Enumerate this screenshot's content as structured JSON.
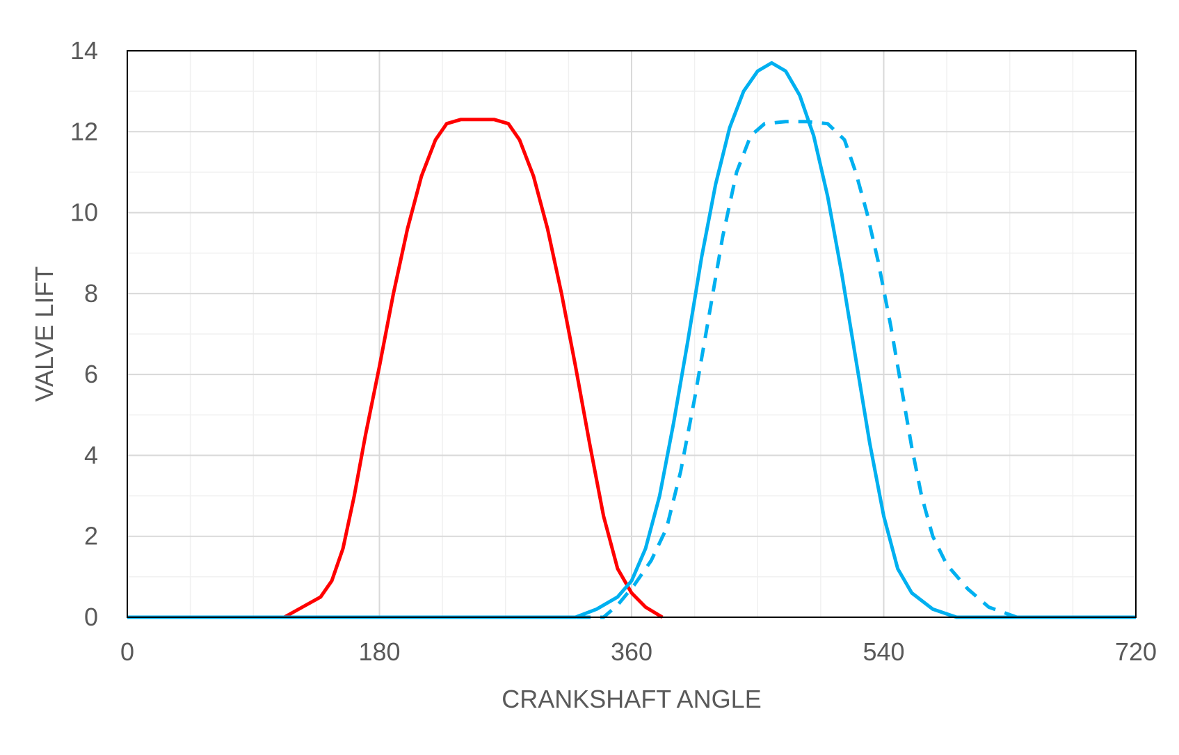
{
  "chart_data": {
    "type": "line",
    "title": "",
    "xlabel": "CRANKSHAFT ANGLE",
    "ylabel": "VALVE LIFT",
    "xlim": [
      0,
      720
    ],
    "ylim": [
      0,
      14
    ],
    "xticks": [
      "0",
      "180",
      "360",
      "540",
      "720"
    ],
    "yticks": [
      "0",
      "2",
      "4",
      "6",
      "8",
      "10",
      "12",
      "14"
    ],
    "x_tick_values": [
      0,
      180,
      360,
      540,
      720
    ],
    "y_tick_values": [
      0,
      2,
      4,
      6,
      8,
      10,
      12,
      14
    ],
    "grid": true,
    "legend": "none",
    "series": [
      {
        "color": "#FF0000",
        "style": "solid",
        "points": [
          [
            112,
            0
          ],
          [
            125,
            0.25
          ],
          [
            138,
            0.5
          ],
          [
            146,
            0.9
          ],
          [
            154,
            1.7
          ],
          [
            162,
            3.0
          ],
          [
            170,
            4.5
          ],
          [
            180,
            6.2
          ],
          [
            190,
            8.0
          ],
          [
            200,
            9.6
          ],
          [
            210,
            10.9
          ],
          [
            220,
            11.8
          ],
          [
            228,
            12.2
          ],
          [
            238,
            12.3
          ],
          [
            250,
            12.3
          ],
          [
            262,
            12.3
          ],
          [
            272,
            12.2
          ],
          [
            280,
            11.8
          ],
          [
            290,
            10.9
          ],
          [
            300,
            9.6
          ],
          [
            310,
            8.0
          ],
          [
            320,
            6.2
          ],
          [
            330,
            4.3
          ],
          [
            340,
            2.5
          ],
          [
            350,
            1.2
          ],
          [
            360,
            0.6
          ],
          [
            370,
            0.25
          ],
          [
            382,
            0
          ]
        ]
      },
      {
        "color": "#00B0F0",
        "style": "solid",
        "points": [
          [
            0,
            0
          ],
          [
            320,
            0
          ],
          [
            335,
            0.2
          ],
          [
            350,
            0.5
          ],
          [
            360,
            0.9
          ],
          [
            370,
            1.7
          ],
          [
            380,
            3.0
          ],
          [
            390,
            4.8
          ],
          [
            400,
            6.8
          ],
          [
            410,
            8.9
          ],
          [
            420,
            10.7
          ],
          [
            430,
            12.1
          ],
          [
            440,
            13.0
          ],
          [
            450,
            13.5
          ],
          [
            460,
            13.7
          ],
          [
            470,
            13.5
          ],
          [
            480,
            12.9
          ],
          [
            490,
            11.9
          ],
          [
            500,
            10.4
          ],
          [
            510,
            8.5
          ],
          [
            520,
            6.4
          ],
          [
            530,
            4.3
          ],
          [
            540,
            2.5
          ],
          [
            550,
            1.2
          ],
          [
            560,
            0.6
          ],
          [
            575,
            0.2
          ],
          [
            592,
            0
          ],
          [
            720,
            0
          ]
        ]
      },
      {
        "color": "#00B0F0",
        "style": "dashed",
        "points": [
          [
            0,
            0
          ],
          [
            340,
            0
          ],
          [
            350,
            0.3
          ],
          [
            362,
            0.8
          ],
          [
            374,
            1.4
          ],
          [
            385,
            2.2
          ],
          [
            395,
            3.6
          ],
          [
            405,
            5.4
          ],
          [
            415,
            7.4
          ],
          [
            425,
            9.4
          ],
          [
            435,
            11.0
          ],
          [
            445,
            11.9
          ],
          [
            455,
            12.2
          ],
          [
            470,
            12.25
          ],
          [
            485,
            12.25
          ],
          [
            500,
            12.2
          ],
          [
            512,
            11.8
          ],
          [
            520,
            11.0
          ],
          [
            528,
            10.0
          ],
          [
            536,
            8.8
          ],
          [
            545,
            7.2
          ],
          [
            553,
            5.6
          ],
          [
            560,
            4.2
          ],
          [
            567,
            3.0
          ],
          [
            575,
            2.0
          ],
          [
            585,
            1.3
          ],
          [
            600,
            0.7
          ],
          [
            615,
            0.25
          ],
          [
            635,
            0
          ],
          [
            720,
            0
          ]
        ]
      }
    ]
  }
}
